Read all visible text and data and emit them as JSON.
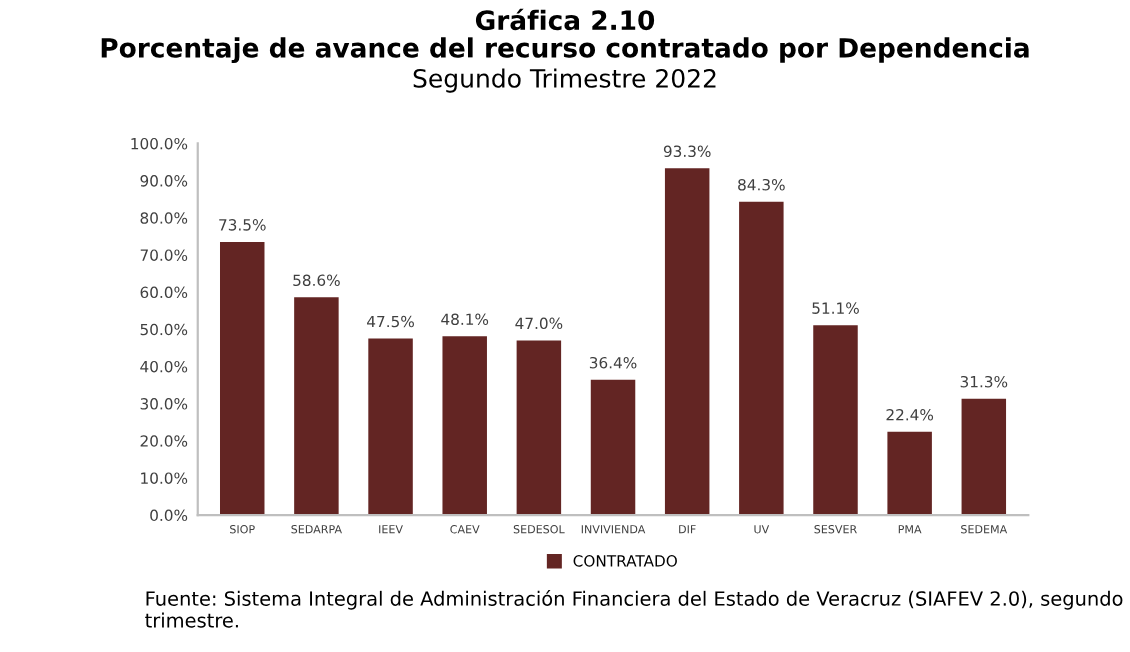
{
  "chart_data": {
    "type": "bar",
    "title": "Gráfica 2.10\nPorcentaje de avance del recurso contratado por Dependencia",
    "subtitle": "Segundo Trimestre 2022",
    "categories": [
      "SIOP",
      "SEDARPA",
      "IEEV",
      "CAEV",
      "SEDESOL",
      "INVIVIENDA",
      "DIF",
      "UV",
      "SESVER",
      "PMA",
      "SEDEMA"
    ],
    "series": [
      {
        "name": "CONTRATADO",
        "color": "#632523",
        "values": [
          73.5,
          58.6,
          47.5,
          48.1,
          47.0,
          36.4,
          93.3,
          84.3,
          51.1,
          22.4,
          31.3
        ]
      }
    ],
    "value_labels": [
      "73.5%",
      "58.6%",
      "47.5%",
      "48.1%",
      "47.0%",
      "36.4%",
      "93.3%",
      "84.3%",
      "51.1%",
      "22.4%",
      "31.3%"
    ],
    "ylim": [
      0,
      100
    ],
    "yticks": [
      {
        "value": 0,
        "label": "0.0%"
      },
      {
        "value": 10,
        "label": "10.0%"
      },
      {
        "value": 20,
        "label": "20.0%"
      },
      {
        "value": 30,
        "label": "30.0%"
      },
      {
        "value": 40,
        "label": "40.0%"
      },
      {
        "value": 50,
        "label": "50.0%"
      },
      {
        "value": 60,
        "label": "60.0%"
      },
      {
        "value": 70,
        "label": "70.0%"
      },
      {
        "value": 80,
        "label": "80.0%"
      },
      {
        "value": 90,
        "label": "90.0%"
      },
      {
        "value": 100,
        "label": "100.0%"
      }
    ],
    "grid": false,
    "legend": "bottom",
    "annotations": [
      "Fuente: Sistema Integral de Administración Financiera del Estado de Veracruz (SIAFEV 2.0), segundo trimestre."
    ]
  }
}
